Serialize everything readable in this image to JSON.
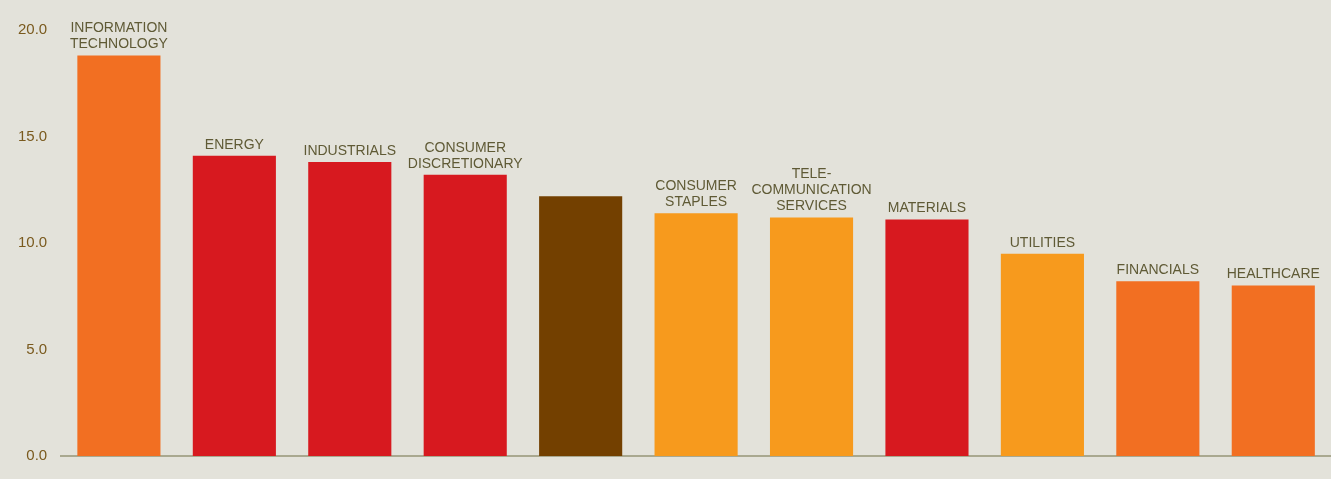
{
  "chart_data": {
    "type": "bar",
    "categories": [
      "INFORMATION TECHNOLOGY",
      "ENERGY",
      "INDUSTRIALS",
      "CONSUMER DISCRETIONARY",
      null,
      "CONSUMER STAPLES",
      "TELE-COMMUNICATION SERVICES",
      "MATERIALS",
      "UTILITIES",
      "FINANCIALS",
      "HEALTHCARE"
    ],
    "values": [
      18.8,
      14.1,
      13.8,
      13.2,
      12.2,
      11.4,
      11.2,
      11.1,
      9.5,
      8.2,
      8.0
    ],
    "colors": [
      "#f26f22",
      "#d7191f",
      "#d7191f",
      "#d7191f",
      "#734000",
      "#f79a1d",
      "#f79a1d",
      "#d7191f",
      "#f79a1d",
      "#f26f22",
      "#f26f22"
    ],
    "ylim": [
      0,
      20
    ],
    "yticks": [
      {
        "value": 0,
        "label": "0.0"
      },
      {
        "value": 5,
        "label": "5.0"
      },
      {
        "value": 10,
        "label": "10.0"
      },
      {
        "value": 15,
        "label": "15.0"
      },
      {
        "value": 20,
        "label": "20.0"
      }
    ],
    "grid": false,
    "legend": false
  }
}
